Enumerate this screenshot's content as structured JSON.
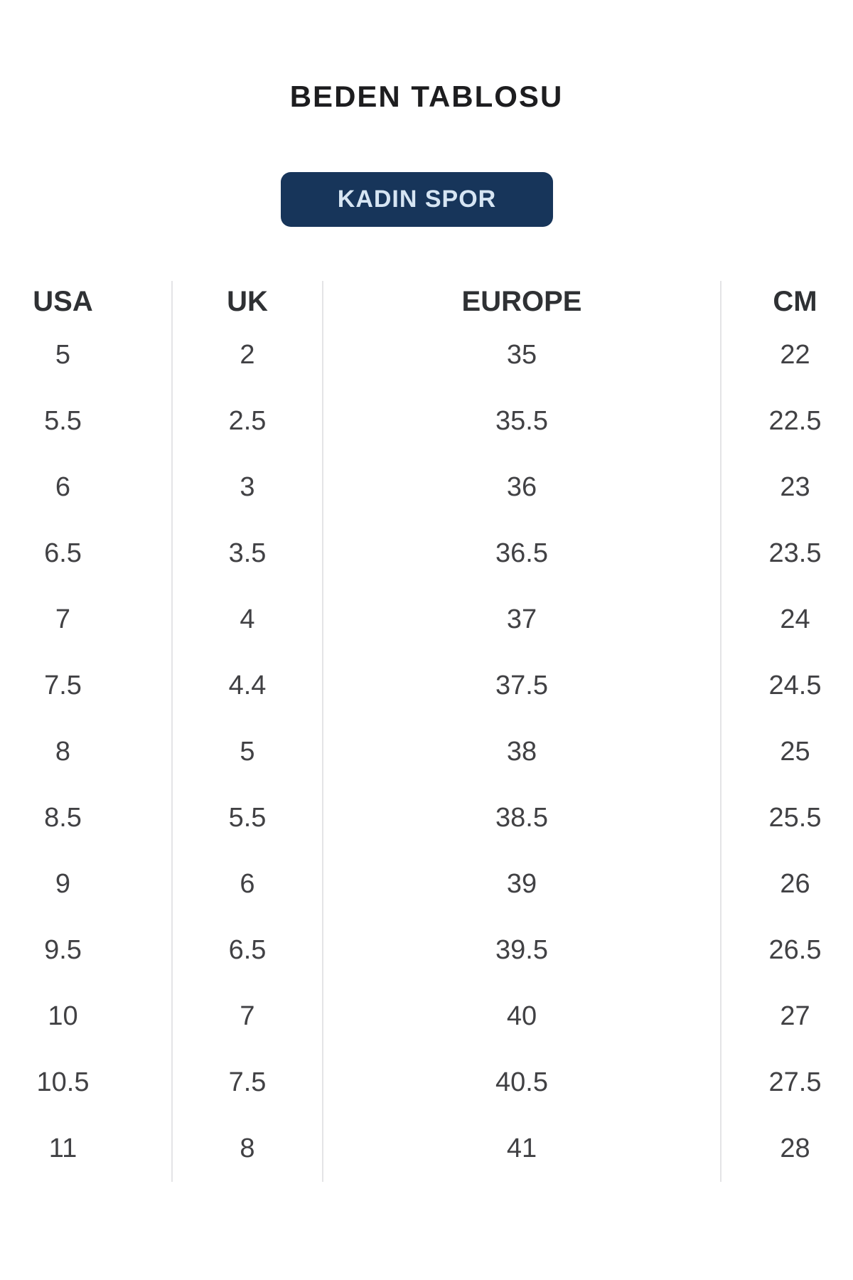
{
  "page": {
    "title": "BEDEN TABLOSU",
    "category_button_label": "KADIN SPOR"
  },
  "colors": {
    "background": "#ffffff",
    "title_text": "#1d1d1f",
    "button_background": "#17355a",
    "button_text": "#d6e5f3",
    "header_text": "#2f3134",
    "cell_text": "#414144",
    "divider": "#e4e4e6"
  },
  "size_table": {
    "columns": [
      "USA",
      "UK",
      "EUROPE",
      "CM"
    ],
    "rows": [
      [
        "5",
        "2",
        "35",
        "22"
      ],
      [
        "5.5",
        "2.5",
        "35.5",
        "22.5"
      ],
      [
        "6",
        "3",
        "36",
        "23"
      ],
      [
        "6.5",
        "3.5",
        "36.5",
        "23.5"
      ],
      [
        "7",
        "4",
        "37",
        "24"
      ],
      [
        "7.5",
        "4.4",
        "37.5",
        "24.5"
      ],
      [
        "8",
        "5",
        "38",
        "25"
      ],
      [
        "8.5",
        "5.5",
        "38.5",
        "25.5"
      ],
      [
        "9",
        "6",
        "39",
        "26"
      ],
      [
        "9.5",
        "6.5",
        "39.5",
        "26.5"
      ],
      [
        "10",
        "7",
        "40",
        "27"
      ],
      [
        "10.5",
        "7.5",
        "40.5",
        "27.5"
      ],
      [
        "11",
        "8",
        "41",
        "28"
      ]
    ]
  }
}
